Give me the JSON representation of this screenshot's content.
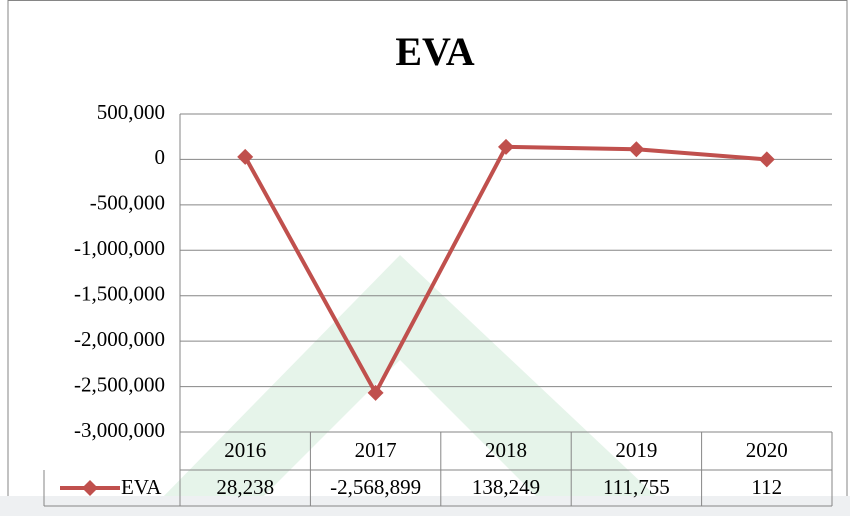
{
  "chart_data": {
    "type": "line",
    "title": "EVA",
    "categories": [
      "2016",
      "2017",
      "2018",
      "2019",
      "2020"
    ],
    "series": [
      {
        "name": "EVA",
        "color": "#c0504d",
        "values": [
          28238,
          -2568899,
          138249,
          111755,
          112
        ],
        "value_labels": [
          "28,238",
          "-2,568,899",
          "138,249",
          "111,755",
          "112"
        ]
      }
    ],
    "ylim": [
      -3000000,
      500000
    ],
    "yticks": [
      {
        "value": -3000000,
        "label": "-3,000,000"
      },
      {
        "value": -2500000,
        "label": "-2,500,000"
      },
      {
        "value": -2000000,
        "label": "-2,000,000"
      },
      {
        "value": -1500000,
        "label": "-1,500,000"
      },
      {
        "value": -1000000,
        "label": "-1,000,000"
      },
      {
        "value": -500000,
        "label": "-500,000"
      },
      0,
      {
        "value": 500000,
        "label": "500,000"
      }
    ],
    "grid": true,
    "legend": "data-table"
  }
}
